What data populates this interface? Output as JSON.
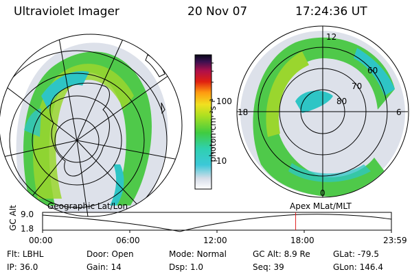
{
  "header": {
    "instrument": "Ultraviolet Imager",
    "date": "20 Nov 07",
    "time": "17:24:36 UT"
  },
  "colorbar": {
    "unit_label": "photon cm⁻²s⁻¹",
    "ticks": [
      "100",
      "10"
    ]
  },
  "polar_plot": {
    "mlat_labels": [
      "60",
      "70",
      "80"
    ],
    "mlt_labels": {
      "top": "12",
      "left": "18",
      "right": "6",
      "bottom": "0"
    }
  },
  "timeline": {
    "left_title": "Geographic Lat/Lon",
    "right_title": "Apex MLat/MLT",
    "y_axis_label": "GC Alt",
    "y_ticks": [
      "9.0",
      "1.8"
    ],
    "x_ticks": [
      "00:00",
      "06:00",
      "12:00",
      "18:00",
      "23:59"
    ],
    "marker_time": "17:24",
    "marker_color": "#e02020"
  },
  "footer": {
    "row1": [
      {
        "label": "Flt:",
        "value": "LBHL"
      },
      {
        "label": "Door:",
        "value": "Open"
      },
      {
        "label": "Mode:",
        "value": "Normal"
      },
      {
        "label": "GC Alt:",
        "value": "8.9 Re"
      },
      {
        "label": "GLat:",
        "value": "-79.5"
      }
    ],
    "row2": [
      {
        "label": "IP:",
        "value": "36.0"
      },
      {
        "label": "Gain:",
        "value": "14"
      },
      {
        "label": "Dsp:",
        "value": "1.0"
      },
      {
        "label": "Seq:",
        "value": "39"
      },
      {
        "label": "GLon:",
        "value": "146.4"
      }
    ]
  },
  "colors": {
    "aurora_low": "#2ec5c5",
    "aurora_mid": "#5fd04a",
    "aurora_high": "#a8d82a",
    "faint": "#d9dde6"
  }
}
